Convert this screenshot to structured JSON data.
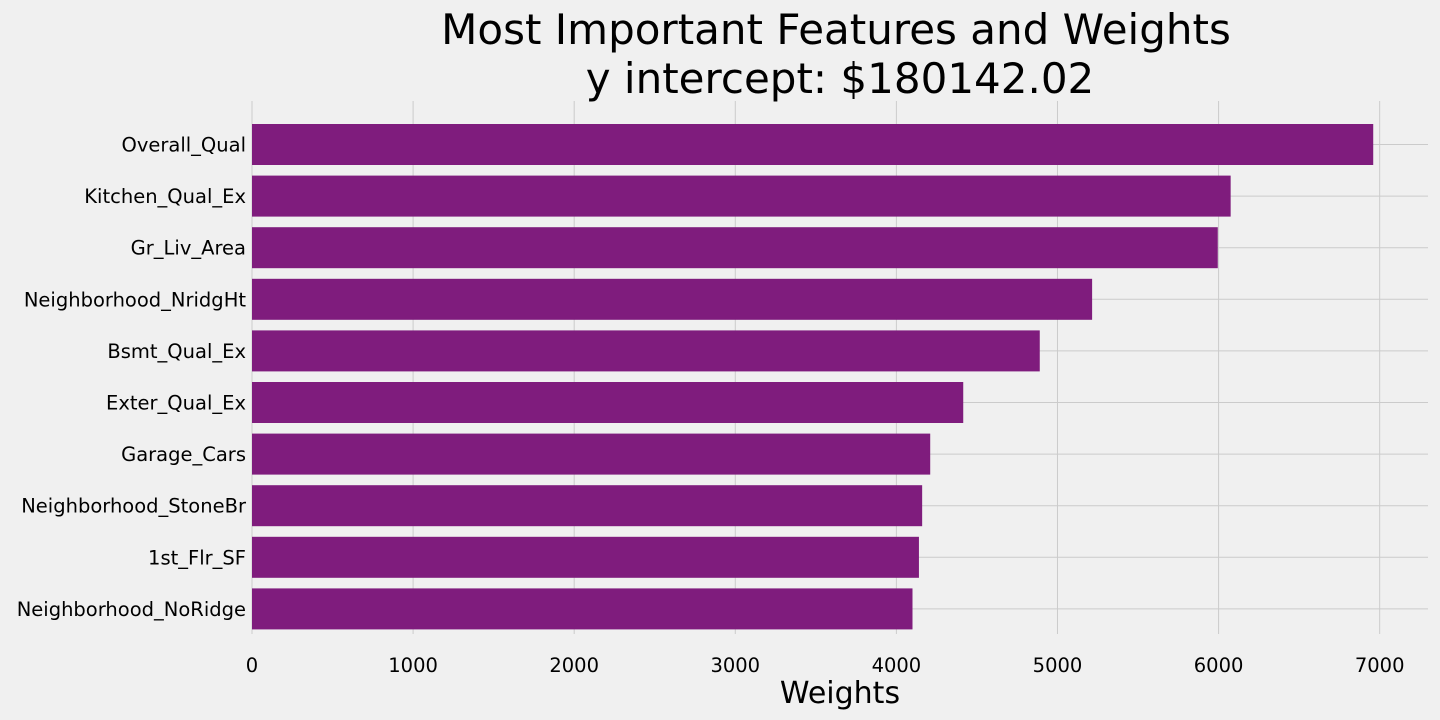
{
  "chart_data": {
    "type": "bar",
    "orientation": "horizontal",
    "title": "Most Important Features and Weights",
    "subtitle": "y intercept: $180142.02",
    "xlabel": "Weights",
    "ylabel": "",
    "categories": [
      "Overall_Qual",
      "Kitchen_Qual_Ex",
      "Gr_Liv_Area",
      "Neighborhood_NridgHt",
      "Bsmt_Qual_Ex",
      "Exter_Qual_Ex",
      "Garage_Cars",
      "Neighborhood_StoneBr",
      "1st_Flr_SF",
      "Neighborhood_NoRidge"
    ],
    "values": [
      6960,
      6075,
      5995,
      5215,
      4890,
      4415,
      4210,
      4160,
      4140,
      4100
    ],
    "xlim": [
      0,
      7300
    ],
    "xticks": [
      0,
      1000,
      2000,
      3000,
      4000,
      5000,
      6000,
      7000
    ],
    "grid": true,
    "legend": "none",
    "bar_color": "#7f1c7d",
    "background_color": "#f0f0f0",
    "grid_color": "#cbcbcb"
  }
}
